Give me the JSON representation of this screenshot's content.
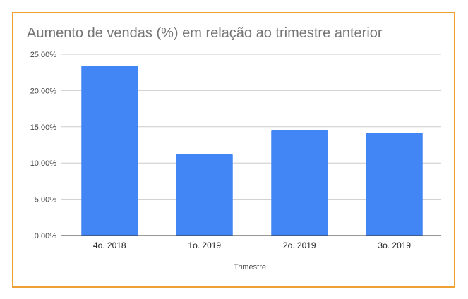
{
  "chart_data": {
    "type": "bar",
    "title": "Aumento de vendas (%) em relação ao trimestre anterior",
    "xlabel": "Trimestre",
    "ylabel": "",
    "categories": [
      "4o. 2018",
      "1o. 2019",
      "2o. 2019",
      "3o. 2019"
    ],
    "values": [
      23.4,
      11.2,
      14.5,
      14.2
    ],
    "ylim": [
      0,
      25
    ],
    "yticks": [
      0,
      5,
      10,
      15,
      20,
      25
    ],
    "ytick_labels": [
      "0,00%",
      "5,00%",
      "10,00%",
      "15,00%",
      "20,00%",
      "25,00%"
    ],
    "grid": true,
    "legend": "none",
    "bar_color": "#4285f4",
    "frame_color": "#f0a030"
  }
}
